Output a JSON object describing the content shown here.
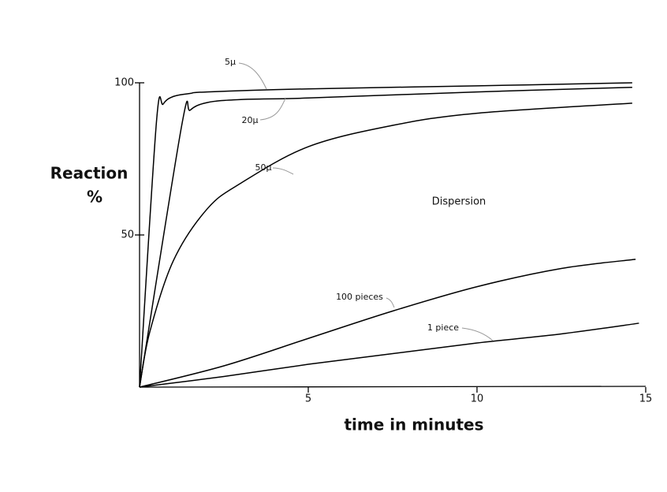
{
  "chart_data": {
    "type": "line",
    "ylabel": [
      "Reaction",
      "%"
    ],
    "xlabel": "time in minutes",
    "annotations": [
      "Dispersion"
    ],
    "xlim": [
      0,
      15
    ],
    "ylim": [
      0,
      100
    ],
    "xticks": [
      5,
      10,
      15
    ],
    "yticks": [
      50,
      100
    ],
    "series": [
      {
        "name": "5μ",
        "color": "#000000",
        "x": [
          0,
          0.5,
          0.7,
          1,
          1.5,
          2,
          5,
          10,
          14.6
        ],
        "values": [
          0,
          87,
          93,
          95.5,
          96.5,
          97,
          98,
          99,
          100
        ]
      },
      {
        "name": "20μ",
        "color": "#000000",
        "x": [
          0,
          1.25,
          1.5,
          2,
          3,
          5,
          10,
          14.6
        ],
        "values": [
          0,
          86,
          91,
          93.5,
          94.5,
          95,
          97,
          98.5
        ]
      },
      {
        "name": "50μ",
        "color": "#000000",
        "x": [
          0,
          0.3,
          1,
          2,
          3,
          5,
          7.5,
          10,
          14.6
        ],
        "values": [
          0,
          18,
          41.5,
          58.5,
          67,
          79,
          86,
          90,
          93.3
        ]
      },
      {
        "name": "100 pieces",
        "color": "#000000",
        "x": [
          0,
          2.5,
          5,
          7.5,
          10,
          12.5,
          14.7
        ],
        "values": [
          0,
          7,
          16,
          25,
          33,
          39,
          42
        ]
      },
      {
        "name": "1 piece",
        "color": "#000000",
        "x": [
          0,
          2.5,
          5,
          7.5,
          10,
          12.5,
          14.8
        ],
        "values": [
          0,
          3.5,
          7.5,
          11,
          14.5,
          17.5,
          21
        ]
      }
    ]
  }
}
